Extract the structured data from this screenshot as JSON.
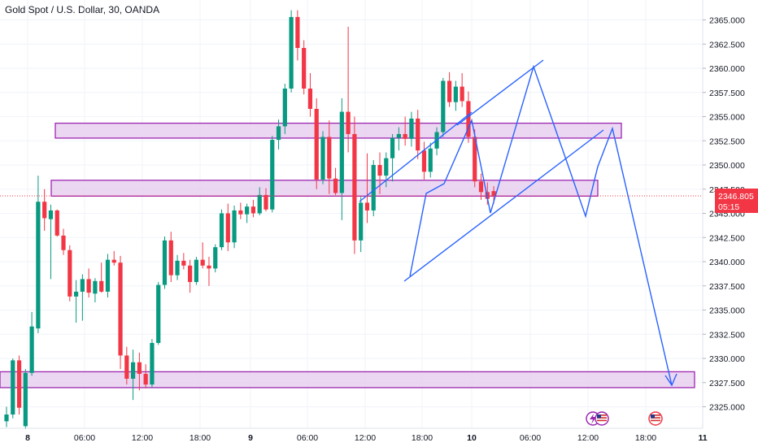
{
  "title": "Gold Spot / U.S. Dollar, 30, OANDA",
  "price_badge": {
    "price": "2346.805",
    "countdown": "05:15",
    "color": "#f23645"
  },
  "colors": {
    "up": "#089981",
    "down": "#f23645",
    "zone_fill": "#e6c9ee",
    "zone_stroke": "#9c27b0",
    "drawing": "#2962ff"
  },
  "icons": [
    "lightning-event-icon",
    "us-flag-icon",
    "us-flag-icon"
  ],
  "chart_data": {
    "type": "candlestick",
    "title": "Gold Spot / U.S. Dollar, 30, OANDA",
    "y_ticks": [
      "2365.000",
      "2362.500",
      "2360.000",
      "2357.500",
      "2355.000",
      "2352.500",
      "2350.000",
      "2347.500",
      "2345.000",
      "2342.500",
      "2340.000",
      "2337.500",
      "2335.000",
      "2332.500",
      "2330.000",
      "2327.500",
      "2325.000"
    ],
    "x_ticks": [
      {
        "label": "8",
        "bold": true
      },
      {
        "label": "06:00",
        "bold": false
      },
      {
        "label": "12:00",
        "bold": false
      },
      {
        "label": "18:00",
        "bold": false
      },
      {
        "label": "9",
        "bold": true
      },
      {
        "label": "06:00",
        "bold": false
      },
      {
        "label": "12:00",
        "bold": false
      },
      {
        "label": "18:00",
        "bold": false
      },
      {
        "label": "10",
        "bold": true
      },
      {
        "label": "06:00",
        "bold": false
      },
      {
        "label": "12:00",
        "bold": false
      },
      {
        "label": "18:00",
        "bold": false
      },
      {
        "label": "11",
        "bold": true
      }
    ],
    "ylim": [
      2323.7,
      2366.5
    ],
    "last_price": 2346.805,
    "zones": [
      {
        "from": 2353.2,
        "to": 2353.9
      },
      {
        "from": 2347.2,
        "to": 2348.0
      },
      {
        "from": 2327.4,
        "to": 2328.2
      }
    ],
    "candles": [
      [
        2323.5,
        2325.0,
        2322.9,
        2324.2
      ],
      [
        2324.2,
        2330.0,
        2323.8,
        2329.8
      ],
      [
        2329.8,
        2330.3,
        2324.2,
        2324.9
      ],
      [
        2323.0,
        2328.9,
        2322.7,
        2328.5
      ],
      [
        2328.5,
        2334.8,
        2328.2,
        2333.3
      ],
      [
        2333.1,
        2348.9,
        2332.6,
        2346.2
      ],
      [
        2346.2,
        2347.5,
        2343.2,
        2344.5
      ],
      [
        2344.4,
        2345.9,
        2338.2,
        2345.3
      ],
      [
        2345.3,
        2345.4,
        2342.6,
        2342.7
      ],
      [
        2342.7,
        2343.4,
        2340.7,
        2341.2
      ],
      [
        2341.2,
        2341.7,
        2335.9,
        2336.4
      ],
      [
        2336.4,
        2338.1,
        2333.7,
        2336.9
      ],
      [
        2336.9,
        2338.7,
        2333.9,
        2338.2
      ],
      [
        2338.2,
        2339.3,
        2336.3,
        2336.8
      ],
      [
        2336.7,
        2338.3,
        2335.8,
        2338.0
      ],
      [
        2338.0,
        2339.9,
        2336.8,
        2336.9
      ],
      [
        2336.9,
        2340.8,
        2336.3,
        2340.2
      ],
      [
        2340.2,
        2341.1,
        2339.6,
        2339.9
      ],
      [
        2339.9,
        2340.6,
        2328.9,
        2330.3
      ],
      [
        2330.3,
        2331.2,
        2327.3,
        2327.9
      ],
      [
        2327.9,
        2330.9,
        2325.7,
        2329.6
      ],
      [
        2329.6,
        2330.6,
        2326.7,
        2328.4
      ],
      [
        2328.4,
        2329.4,
        2326.9,
        2327.3
      ],
      [
        2327.3,
        2332.0,
        2327.0,
        2331.6
      ],
      [
        2331.6,
        2337.9,
        2331.4,
        2337.6
      ],
      [
        2337.6,
        2342.6,
        2337.2,
        2342.2
      ],
      [
        2342.2,
        2343.1,
        2337.9,
        2338.6
      ],
      [
        2338.6,
        2340.7,
        2338.1,
        2340.1
      ],
      [
        2340.1,
        2340.9,
        2339.2,
        2339.6
      ],
      [
        2339.6,
        2340.2,
        2336.8,
        2337.9
      ],
      [
        2337.9,
        2340.5,
        2337.6,
        2340.2
      ],
      [
        2340.2,
        2342.0,
        2339.3,
        2339.6
      ],
      [
        2339.6,
        2340.5,
        2337.5,
        2339.3
      ],
      [
        2339.3,
        2341.8,
        2338.9,
        2341.5
      ],
      [
        2341.5,
        2345.4,
        2341.2,
        2345.0
      ],
      [
        2345.0,
        2346.0,
        2341.1,
        2342.0
      ],
      [
        2342.0,
        2345.8,
        2341.4,
        2345.3
      ],
      [
        2345.3,
        2346.1,
        2344.4,
        2344.9
      ],
      [
        2344.9,
        2346.0,
        2344.0,
        2345.7
      ],
      [
        2345.7,
        2346.4,
        2344.6,
        2345.0
      ],
      [
        2345.0,
        2347.7,
        2344.8,
        2346.9
      ],
      [
        2346.9,
        2347.6,
        2345.2,
        2345.4
      ],
      [
        2345.4,
        2353.0,
        2345.1,
        2352.6
      ],
      [
        2352.6,
        2354.7,
        2351.6,
        2354.0
      ],
      [
        2354.0,
        2358.4,
        2353.2,
        2357.9
      ],
      [
        2357.9,
        2366.0,
        2357.5,
        2365.3
      ],
      [
        2365.3,
        2366.0,
        2360.8,
        2362.1
      ],
      [
        2362.1,
        2362.9,
        2357.3,
        2357.9
      ],
      [
        2357.9,
        2359.5,
        2355.0,
        2355.8
      ],
      [
        2355.8,
        2356.9,
        2347.5,
        2348.5
      ],
      [
        2348.5,
        2353.5,
        2348.0,
        2352.9
      ],
      [
        2352.9,
        2354.6,
        2347.0,
        2348.6
      ],
      [
        2348.6,
        2349.7,
        2346.9,
        2347.1
      ],
      [
        2347.1,
        2356.9,
        2344.3,
        2355.5
      ],
      [
        2355.5,
        2364.3,
        2351.3,
        2353.2
      ],
      [
        2353.2,
        2355.0,
        2340.8,
        2342.2
      ],
      [
        2342.2,
        2346.7,
        2341.0,
        2346.1
      ],
      [
        2346.1,
        2351.2,
        2344.0,
        2345.3
      ],
      [
        2345.3,
        2350.5,
        2344.7,
        2350.0
      ],
      [
        2350.0,
        2351.3,
        2347.0,
        2348.9
      ],
      [
        2348.9,
        2351.3,
        2347.7,
        2350.7
      ],
      [
        2350.7,
        2353.2,
        2348.3,
        2352.8
      ],
      [
        2352.8,
        2353.9,
        2351.5,
        2353.2
      ],
      [
        2353.2,
        2355.0,
        2352.0,
        2352.7
      ],
      [
        2352.7,
        2355.5,
        2351.9,
        2354.8
      ],
      [
        2354.8,
        2355.7,
        2350.6,
        2351.5
      ],
      [
        2351.5,
        2352.4,
        2348.5,
        2349.3
      ],
      [
        2349.3,
        2352.3,
        2348.7,
        2351.7
      ],
      [
        2351.7,
        2353.9,
        2351.0,
        2353.4
      ],
      [
        2353.4,
        2359.0,
        2352.9,
        2358.7
      ],
      [
        2358.7,
        2359.6,
        2356.0,
        2356.5
      ],
      [
        2356.5,
        2358.7,
        2355.6,
        2358.1
      ],
      [
        2358.1,
        2359.5,
        2356.0,
        2356.6
      ],
      [
        2356.6,
        2357.6,
        2352.3,
        2352.9
      ],
      [
        2352.9,
        2353.7,
        2347.7,
        2348.3
      ],
      [
        2348.3,
        2349.1,
        2346.4,
        2347.2
      ],
      [
        2347.2,
        2348.2,
        2345.9,
        2346.5
      ],
      [
        2347.3,
        2347.8,
        2346.0,
        2346.805
      ]
    ]
  }
}
